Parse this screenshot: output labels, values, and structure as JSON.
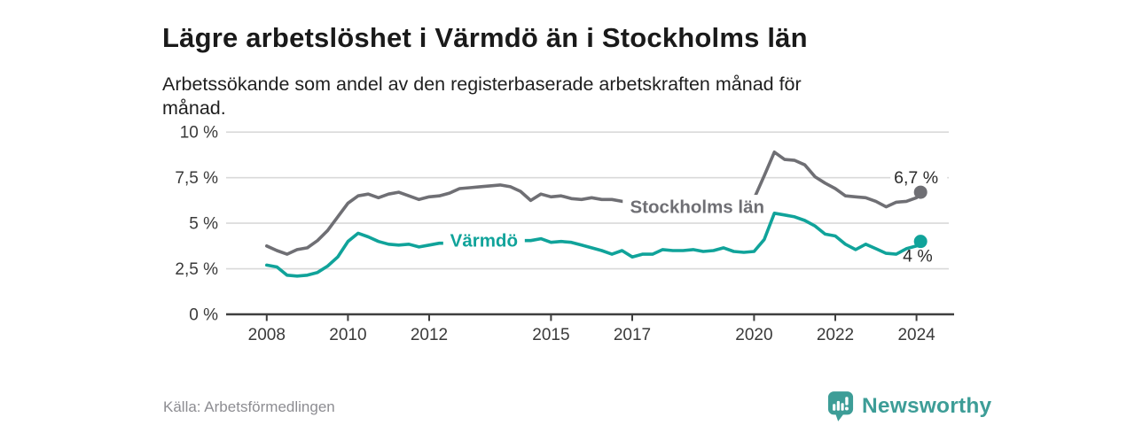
{
  "header": {
    "title": "Lägre arbetslöshet i Värmdö än i Stockholms län",
    "subtitle_line1": "Arbetssökande som andel av den registerbaserade arbetskraften månad för",
    "subtitle_line2": "månad."
  },
  "footer": {
    "source": "Källa: Arbetsförmedlingen",
    "brand": "Newsworthy"
  },
  "colors": {
    "text_dark": "#1a1a1a",
    "tick_text": "#3a3a3a",
    "grid": "#d9d9d9",
    "axis": "#3f3f3f",
    "stockholm_gray": "#6f6f74",
    "varmdo_teal": "#10a39a",
    "end_label_text": "#2b2b2b",
    "source_text": "#8d8d92",
    "brand_teal": "#3d9d97"
  },
  "chart_data": {
    "type": "line",
    "title": "Lägre arbetslöshet i Värmdö än i Stockholms län",
    "subtitle": "Arbetssökande som andel av den registerbaserade arbetskraften månad för månad.",
    "unit": "%",
    "grid": true,
    "legend": "inline-labels",
    "xlim": [
      2007.0,
      2024.9
    ],
    "ylim": [
      0,
      10
    ],
    "xticks": [
      {
        "v": 2008,
        "label": "2008"
      },
      {
        "v": 2010,
        "label": "2010"
      },
      {
        "v": 2012,
        "label": "2012"
      },
      {
        "v": 2015,
        "label": "2015"
      },
      {
        "v": 2017,
        "label": "2017"
      },
      {
        "v": 2020,
        "label": "2020"
      },
      {
        "v": 2022,
        "label": "2022"
      },
      {
        "v": 2024,
        "label": "2024"
      }
    ],
    "yticks": [
      {
        "v": 0,
        "label": "0 %"
      },
      {
        "v": 2.5,
        "label": "2,5 %"
      },
      {
        "v": 5,
        "label": "5 %"
      },
      {
        "v": 7.5,
        "label": "7,5 %"
      },
      {
        "v": 10,
        "label": "10 %"
      }
    ],
    "x": [
      2008,
      2008.25,
      2008.5,
      2008.75,
      2009,
      2009.25,
      2009.5,
      2009.75,
      2010,
      2010.25,
      2010.5,
      2010.75,
      2011,
      2011.25,
      2011.5,
      2011.75,
      2012,
      2012.25,
      2012.5,
      2012.75,
      2013,
      2013.25,
      2013.5,
      2013.75,
      2014,
      2014.25,
      2014.5,
      2014.75,
      2015,
      2015.25,
      2015.5,
      2015.75,
      2016,
      2016.25,
      2016.5,
      2016.75,
      2017,
      2017.25,
      2017.5,
      2017.75,
      2018,
      2018.25,
      2018.5,
      2018.75,
      2019,
      2019.25,
      2019.5,
      2019.75,
      2020,
      2020.25,
      2020.5,
      2020.75,
      2021,
      2021.25,
      2021.5,
      2021.75,
      2022,
      2022.25,
      2022.5,
      2022.75,
      2023,
      2023.25,
      2023.5,
      2023.75,
      2024,
      2024.1
    ],
    "series": [
      {
        "name": "Stockholms län",
        "color": "#6f6f74",
        "end_label": "6,7 %",
        "end_value": 6.7,
        "end_label_position": "above",
        "inline_label": {
          "x": 2018.6,
          "y": 5.9,
          "w": 168
        },
        "values": [
          3.75,
          3.5,
          3.3,
          3.55,
          3.65,
          4.05,
          4.6,
          5.35,
          6.1,
          6.5,
          6.6,
          6.4,
          6.6,
          6.7,
          6.5,
          6.3,
          6.45,
          6.5,
          6.65,
          6.9,
          6.95,
          7.0,
          7.05,
          7.1,
          7.0,
          6.75,
          6.25,
          6.6,
          6.45,
          6.5,
          6.35,
          6.3,
          6.4,
          6.3,
          6.3,
          6.2,
          6.25,
          6.3,
          6.25,
          6.3,
          6.3,
          6.35,
          6.3,
          6.35,
          6.4,
          6.35,
          6.3,
          6.3,
          6.35,
          7.6,
          8.9,
          8.5,
          8.45,
          8.2,
          7.55,
          7.2,
          6.9,
          6.5,
          6.45,
          6.4,
          6.2,
          5.9,
          6.15,
          6.2,
          6.4,
          6.7
        ]
      },
      {
        "name": "Värmdö",
        "color": "#10a39a",
        "end_label": "4 %",
        "end_value": 4.0,
        "end_label_position": "below",
        "inline_label": {
          "x": 2013.35,
          "y": 4.05,
          "w": 92
        },
        "values": [
          2.7,
          2.6,
          2.15,
          2.1,
          2.15,
          2.3,
          2.65,
          3.15,
          4.0,
          4.45,
          4.25,
          4.0,
          3.85,
          3.8,
          3.85,
          3.7,
          3.8,
          3.9,
          3.9,
          3.95,
          4.0,
          4.05,
          4.0,
          4.05,
          4.0,
          4.05,
          4.05,
          4.15,
          3.95,
          4.0,
          3.95,
          3.8,
          3.65,
          3.5,
          3.3,
          3.5,
          3.15,
          3.3,
          3.3,
          3.55,
          3.5,
          3.5,
          3.55,
          3.45,
          3.5,
          3.65,
          3.45,
          3.4,
          3.45,
          4.1,
          5.55,
          5.45,
          5.35,
          5.15,
          4.85,
          4.4,
          4.3,
          3.85,
          3.55,
          3.85,
          3.6,
          3.35,
          3.3,
          3.6,
          3.75,
          4.0
        ]
      }
    ]
  }
}
